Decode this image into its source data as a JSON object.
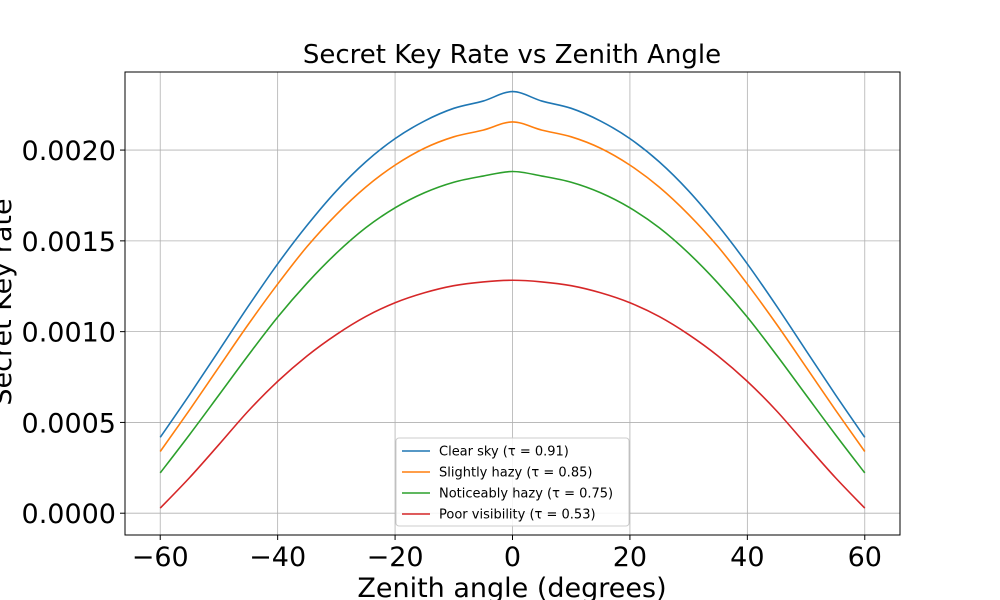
{
  "chart_data": {
    "type": "line",
    "title": "Secret Key Rate vs Zenith Angle",
    "xlabel": "Zenith angle (degrees)",
    "ylabel": "Secret Key rate",
    "xlim": [
      -66,
      66
    ],
    "ylim": [
      -0.00012,
      0.00243
    ],
    "xticks": [
      -60,
      -40,
      -20,
      0,
      20,
      40,
      60
    ],
    "xtick_labels": [
      "−60",
      "−40",
      "−20",
      "0",
      "20",
      "40",
      "60"
    ],
    "yticks": [
      0,
      0.0005,
      0.001,
      0.0015,
      0.002
    ],
    "ytick_labels": [
      "0.0000",
      "0.0005",
      "0.0010",
      "0.0015",
      "0.0020"
    ],
    "grid": true,
    "legend_position": "bottom-center",
    "x": [
      -60,
      -55,
      -50,
      -45,
      -40,
      -35,
      -30,
      -25,
      -20,
      -15,
      -10,
      -5,
      0,
      5,
      10,
      15,
      20,
      25,
      30,
      35,
      40,
      45,
      50,
      55,
      60
    ],
    "series": [
      {
        "name": "Clear sky (τ = 0.91)",
        "color": "#1f77b4",
        "values": [
          0.000418,
          0.000653,
          0.000896,
          0.00114,
          0.001373,
          0.001585,
          0.001775,
          0.001935,
          0.002063,
          0.00216,
          0.00223,
          0.00227,
          0.002322,
          0.00227,
          0.00223,
          0.00216,
          0.002063,
          0.001935,
          0.001775,
          0.001585,
          0.001373,
          0.00114,
          0.000896,
          0.000653,
          0.000418
        ]
      },
      {
        "name": "Slightly hazy (τ = 0.85)",
        "color": "#ff7f0e",
        "values": [
          0.00034,
          0.000569,
          0.000805,
          0.00104,
          0.001262,
          0.001468,
          0.001645,
          0.001796,
          0.001917,
          0.00201,
          0.002073,
          0.00211,
          0.002155,
          0.00211,
          0.002073,
          0.00201,
          0.001917,
          0.001796,
          0.001645,
          0.001468,
          0.001262,
          0.00104,
          0.000805,
          0.000569,
          0.00034
        ]
      },
      {
        "name": "Noticeably hazy (τ = 0.75)",
        "color": "#2ca02c",
        "values": [
          0.000222,
          0.000433,
          0.000651,
          0.00087,
          0.00108,
          0.001267,
          0.001432,
          0.001572,
          0.001682,
          0.001765,
          0.001823,
          0.001857,
          0.001882,
          0.001857,
          0.001823,
          0.001765,
          0.001682,
          0.001572,
          0.001432,
          0.001267,
          0.00108,
          0.00087,
          0.000651,
          0.000433,
          0.000222
        ]
      },
      {
        "name": "Poor visibility (τ = 0.53)",
        "color": "#d62728",
        "values": [
          2.8e-05,
          0.000196,
          0.000378,
          0.000563,
          0.000726,
          0.000866,
          0.000984,
          0.001083,
          0.001159,
          0.001214,
          0.001253,
          0.001274,
          0.001283,
          0.001274,
          0.001253,
          0.001214,
          0.001159,
          0.001083,
          0.000984,
          0.000866,
          0.000726,
          0.000563,
          0.000378,
          0.000196,
          2.8e-05
        ]
      }
    ]
  }
}
